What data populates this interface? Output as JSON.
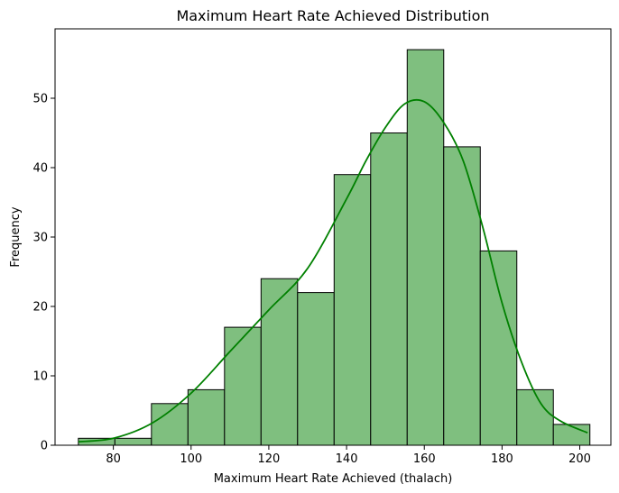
{
  "chart_data": {
    "type": "bar",
    "title": "Maximum Heart Rate Achieved Distribution",
    "xlabel": "Maximum Heart Rate Achieved (thalach)",
    "ylabel": "Frequency",
    "bin_edges": [
      71,
      80.4,
      89.8,
      99.2,
      108.6,
      118,
      127.4,
      136.8,
      146.2,
      155.6,
      165,
      174.4,
      183.8,
      193.2,
      202.6
    ],
    "values": [
      1,
      1,
      6,
      8,
      17,
      24,
      22,
      39,
      45,
      57,
      43,
      28,
      8,
      3
    ],
    "xlim": [
      65,
      208
    ],
    "ylim": [
      0,
      60
    ],
    "xticks": [
      80,
      100,
      120,
      140,
      160,
      180,
      200
    ],
    "yticks": [
      0,
      10,
      20,
      30,
      40,
      50
    ],
    "kde": {
      "x": [
        71,
        80,
        90,
        100,
        110,
        120,
        130,
        140,
        145,
        150,
        155,
        160,
        165,
        170,
        175,
        180,
        185,
        190,
        195,
        202
      ],
      "y": [
        0.5,
        1.0,
        3.2,
        7.5,
        13.5,
        19.5,
        25.5,
        35.5,
        41.0,
        45.8,
        49.2,
        49.5,
        46.5,
        41.0,
        31.5,
        20.5,
        12.0,
        6.0,
        3.5,
        1.8
      ]
    },
    "colors": {
      "bar_fill": "#7fbf7f",
      "bar_edge": "#000000",
      "kde_line": "#008000"
    },
    "grid": false,
    "legend": "none"
  }
}
